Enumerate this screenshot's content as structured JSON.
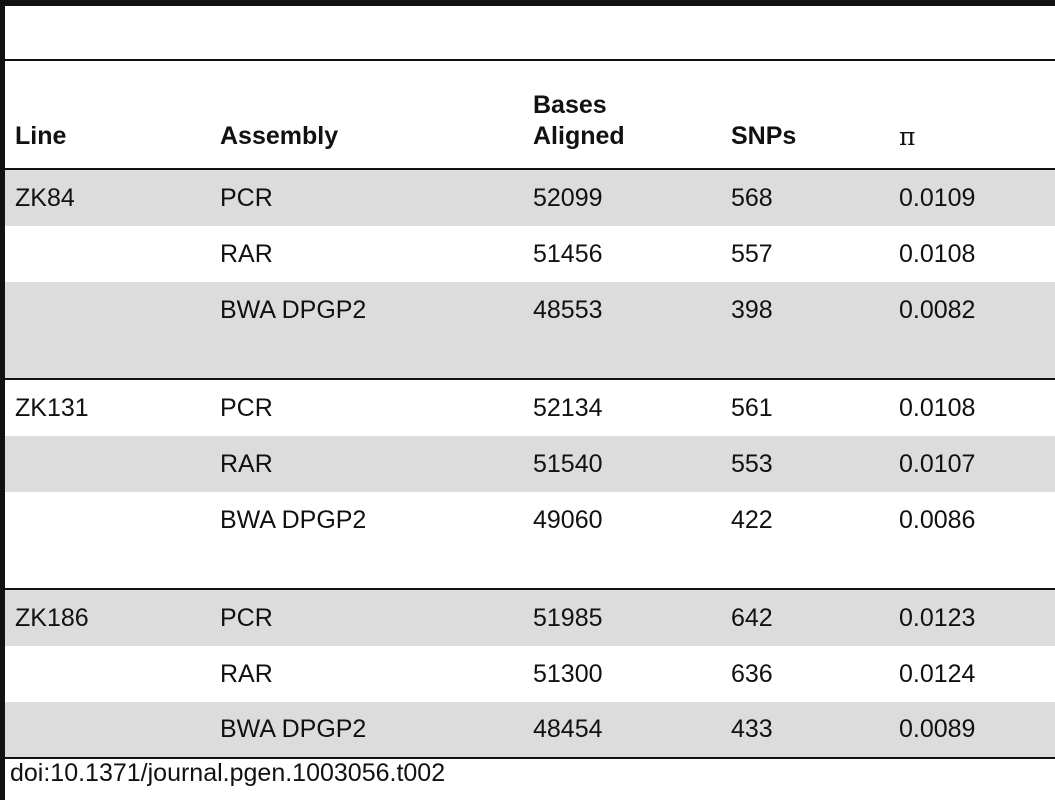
{
  "table": {
    "headers": [
      "Line",
      "Assembly",
      "Bases Aligned",
      "SNPs",
      "π"
    ],
    "groups": [
      {
        "line": "ZK84",
        "rows": [
          {
            "assembly": "PCR",
            "bases": "52099",
            "snps": "568",
            "pi": "0.0109"
          },
          {
            "assembly": "RAR",
            "bases": "51456",
            "snps": "557",
            "pi": "0.0108"
          },
          {
            "assembly": "BWA DPGP2",
            "bases": "48553",
            "snps": "398",
            "pi": "0.0082"
          }
        ]
      },
      {
        "line": "ZK131",
        "rows": [
          {
            "assembly": "PCR",
            "bases": "52134",
            "snps": "561",
            "pi": "0.0108"
          },
          {
            "assembly": "RAR",
            "bases": "51540",
            "snps": "553",
            "pi": "0.0107"
          },
          {
            "assembly": "BWA DPGP2",
            "bases": "49060",
            "snps": "422",
            "pi": "0.0086"
          }
        ]
      },
      {
        "line": "ZK186",
        "rows": [
          {
            "assembly": "PCR",
            "bases": "51985",
            "snps": "642",
            "pi": "0.0123"
          },
          {
            "assembly": "RAR",
            "bases": "51300",
            "snps": "636",
            "pi": "0.0124"
          },
          {
            "assembly": "BWA DPGP2",
            "bases": "48454",
            "snps": "433",
            "pi": "0.0089"
          }
        ]
      }
    ]
  },
  "footnote": "doi:10.1371/journal.pgen.1003056.t002"
}
